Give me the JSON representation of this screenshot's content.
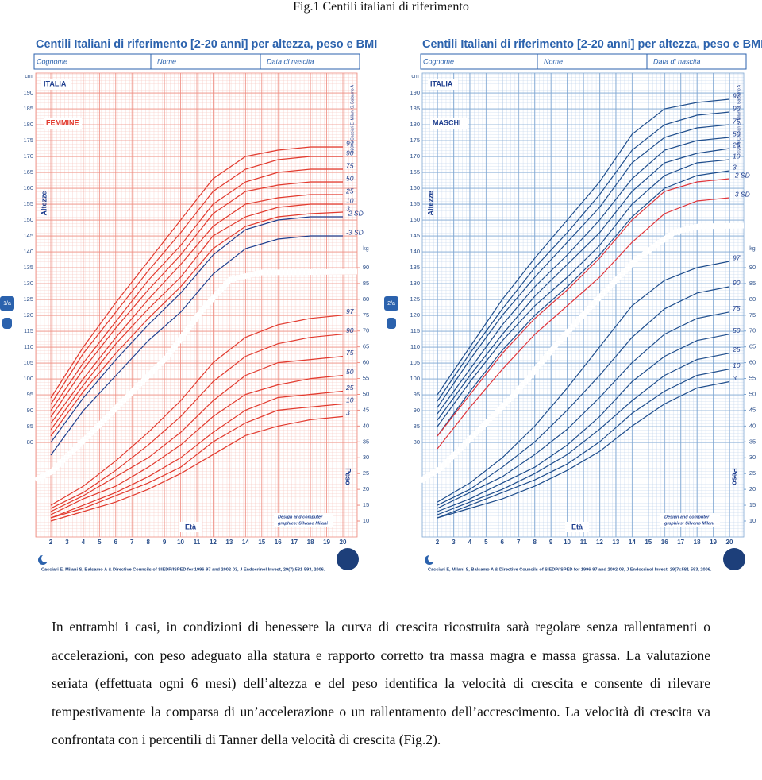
{
  "caption": "Fig.1 Centili italiani di riferimento",
  "charts": [
    {
      "title": "Centili Italiani di riferimento [2-20 anni] per altezza, peso e BMI",
      "fields": [
        "Cognome",
        "Nome",
        "Data di nascita"
      ],
      "country": "ITALIA",
      "sex": "FEMMINE",
      "tab": "1/a",
      "height_label": "Altezze",
      "weight_label": "Peso",
      "age_label": "Età",
      "height_unit": "cm",
      "weight_unit": "kg",
      "copyright": "©2006 Cacciari E, Milani S, Balsamo A",
      "design_credit": [
        "Design and computer",
        "graphics: Silvano Milani"
      ],
      "citation": "Cacciari E, Milani S, Balsamo A & Directive Councils of SIEDP/ISPED for 1996-97 and 2002-03, J Endocrinol Invest, 29(7):581-593, 2006.",
      "xlim": [
        2,
        20
      ],
      "xticks": [
        2,
        3,
        4,
        5,
        6,
        7,
        8,
        9,
        10,
        11,
        12,
        13,
        14,
        15,
        16,
        17,
        18,
        19,
        20
      ],
      "x": [
        2,
        4,
        6,
        8,
        10,
        12,
        14,
        16,
        18,
        20
      ],
      "height": {
        "ylim": [
          80,
          190
        ],
        "yticks": [
          80,
          85,
          90,
          95,
          100,
          105,
          110,
          115,
          120,
          125,
          130,
          135,
          140,
          145,
          150,
          155,
          160,
          165,
          170,
          175,
          180,
          185,
          190
        ],
        "series": [
          {
            "name": "97",
            "color": "#e23a2e",
            "values": [
              94,
              110,
              124,
              137,
              150,
              163,
              170,
              172,
              173,
              173
            ]
          },
          {
            "name": "90",
            "color": "#e23a2e",
            "values": [
              92,
              108,
              121,
              134,
              146,
              159,
              166,
              169,
              170,
              170
            ]
          },
          {
            "name": "75",
            "color": "#e23a2e",
            "values": [
              90,
              105,
              118,
              131,
              142,
              155,
              162,
              165,
              166,
              166
            ]
          },
          {
            "name": "50",
            "color": "#e23a2e",
            "values": [
              88,
              103,
              116,
              128,
              139,
              152,
              159,
              161,
              162,
              162
            ]
          },
          {
            "name": "25",
            "color": "#e23a2e",
            "values": [
              86,
              100,
              113,
              125,
              136,
              148,
              155,
              157,
              158,
              158
            ]
          },
          {
            "name": "10",
            "color": "#e23a2e",
            "values": [
              84,
              98,
              111,
              122,
              132,
              145,
              151,
              154,
              155,
              155
            ]
          },
          {
            "name": "3",
            "color": "#e23a2e",
            "values": [
              82,
              96,
              108,
              119,
              129,
              141,
              148,
              151,
              152,
              152.5
            ]
          },
          {
            "name": "-2 SD",
            "color": "#1f3f8f",
            "values": [
              80,
              94,
              106,
              117,
              127,
              139,
              147,
              150,
              151,
              151
            ]
          },
          {
            "name": "-3 SD",
            "color": "#1f3f8f",
            "values": [
              76,
              90,
              101,
              112,
              121,
              133,
              141,
              144,
              145,
              145
            ]
          }
        ]
      },
      "weight": {
        "ylim": [
          10,
          90
        ],
        "yticks": [
          10,
          15,
          20,
          25,
          30,
          35,
          40,
          45,
          50,
          55,
          60,
          65,
          70,
          75,
          80,
          85,
          90
        ],
        "series": [
          {
            "name": "97",
            "color": "#e23a2e",
            "values": [
              15,
              21,
              29,
              38,
              48,
              60,
              68,
              72,
              74,
              75
            ]
          },
          {
            "name": "90",
            "color": "#e23a2e",
            "values": [
              14,
              19,
              26,
              34,
              43,
              54,
              62,
              66,
              68,
              69
            ]
          },
          {
            "name": "75",
            "color": "#e23a2e",
            "values": [
              13,
              18,
              24,
              30,
              38,
              48,
              56,
              60,
              61,
              62
            ]
          },
          {
            "name": "50",
            "color": "#e23a2e",
            "values": [
              12,
              17,
              21,
              27,
              34,
              43,
              50,
              53,
              55,
              56
            ]
          },
          {
            "name": "25",
            "color": "#e23a2e",
            "values": [
              11,
              15,
              19,
              24,
              30,
              38,
              45,
              49,
              50,
              51
            ]
          },
          {
            "name": "10",
            "color": "#e23a2e",
            "values": [
              11,
              14,
              18,
              22,
              27,
              35,
              41,
              45,
              46,
              47
            ]
          },
          {
            "name": "3",
            "color": "#e23a2e",
            "values": [
              10,
              13,
              16,
              20,
              25,
              31,
              37,
              40,
              42,
              43
            ]
          }
        ]
      }
    },
    {
      "title": "Centili Italiani di riferimento [2-20 anni] per altezza, peso e BMI",
      "fields": [
        "Cognome",
        "Nome",
        "Data di nascita"
      ],
      "country": "ITALIA",
      "sex": "MASCHI",
      "tab": "2/a",
      "height_label": "Altezze",
      "weight_label": "Peso",
      "age_label": "Età",
      "height_unit": "cm",
      "weight_unit": "kg",
      "copyright": "©2006 Cacciari E, Milani S, Balsamo A",
      "design_credit": [
        "Design and computer",
        "graphics: Silvano Milani"
      ],
      "citation": "Cacciari E, Milani S, Balsamo A & Directive Councils of SIEDP/ISPED for 1996-97 and 2002-03, J Endocrinol Invest, 29(7):581-593, 2006.",
      "xlim": [
        2,
        20
      ],
      "xticks": [
        2,
        3,
        4,
        5,
        6,
        7,
        8,
        9,
        10,
        11,
        12,
        13,
        14,
        15,
        16,
        17,
        18,
        19,
        20
      ],
      "x": [
        2,
        4,
        6,
        8,
        10,
        12,
        14,
        16,
        18,
        20
      ],
      "height": {
        "ylim": [
          80,
          190
        ],
        "yticks": [
          80,
          85,
          90,
          95,
          100,
          105,
          110,
          115,
          120,
          125,
          130,
          135,
          140,
          145,
          150,
          155,
          160,
          165,
          170,
          175,
          180,
          185,
          190
        ],
        "series": [
          {
            "name": "97",
            "color": "#1e4d8c",
            "values": [
              95,
              110,
              125,
              138,
              150,
              162,
              177,
              185,
              187,
              188
            ]
          },
          {
            "name": "90",
            "color": "#1e4d8c",
            "values": [
              93,
              108,
              122,
              135,
              146,
              158,
              172,
              180,
              183,
              184
            ]
          },
          {
            "name": "75",
            "color": "#1e4d8c",
            "values": [
              91,
              106,
              120,
              132,
              143,
              154,
              168,
              176,
              179,
              180
            ]
          },
          {
            "name": "50",
            "color": "#1e4d8c",
            "values": [
              89,
              103,
              117,
              129,
              139,
              150,
              163,
              172,
              175,
              176
            ]
          },
          {
            "name": "25",
            "color": "#1e4d8c",
            "values": [
              87,
              101,
              114,
              126,
              136,
              146,
              159,
              168,
              171,
              172.5
            ]
          },
          {
            "name": "10",
            "color": "#1e4d8c",
            "values": [
              85,
              99,
              112,
              123,
              132,
              142,
              155,
              164,
              168,
              169
            ]
          },
          {
            "name": "3",
            "color": "#1e4d8c",
            "values": [
              82,
              96,
              109,
              120,
              129,
              139,
              151,
              160,
              164,
              165.5
            ]
          },
          {
            "name": "-2 SD",
            "color": "#e0343a",
            "values": [
              82,
              95,
              108,
              119,
              128,
              138,
              150,
              159,
              162,
              163
            ]
          },
          {
            "name": "-3 SD",
            "color": "#e0343a",
            "values": [
              78,
              91,
              103,
              114,
              123,
              132,
              143,
              152,
              156,
              157
            ]
          }
        ]
      },
      "weight": {
        "ylim": [
          10,
          90
        ],
        "yticks": [
          10,
          15,
          20,
          25,
          30,
          35,
          40,
          45,
          50,
          55,
          60,
          65,
          70,
          75,
          80,
          85,
          90
        ],
        "series": [
          {
            "name": "97",
            "color": "#1e4d8c",
            "values": [
              16,
              22,
              30,
              40,
              52,
              65,
              78,
              86,
              90,
              92
            ]
          },
          {
            "name": "90",
            "color": "#1e4d8c",
            "values": [
              15,
              20,
              27,
              35,
              45,
              56,
              68,
              77,
              82,
              84
            ]
          },
          {
            "name": "75",
            "color": "#1e4d8c",
            "values": [
              14,
              19,
              24,
              31,
              39,
              49,
              60,
              69,
              74,
              76
            ]
          },
          {
            "name": "50",
            "color": "#1e4d8c",
            "values": [
              13,
              17,
              22,
              27,
              34,
              43,
              54,
              62,
              67,
              69
            ]
          },
          {
            "name": "25",
            "color": "#1e4d8c",
            "values": [
              12,
              16,
              20,
              25,
              31,
              39,
              48,
              56,
              61,
              63
            ]
          },
          {
            "name": "10",
            "color": "#1e4d8c",
            "values": [
              11,
              15,
              19,
              23,
              28,
              35,
              44,
              51,
              56,
              58
            ]
          },
          {
            "name": "3",
            "color": "#1e4d8c",
            "values": [
              11,
              14,
              17,
              21,
              26,
              32,
              40,
              47,
              52,
              54
            ]
          }
        ]
      }
    }
  ],
  "paragraph": "In entrambi i casi, in condizioni di benessere la curva di crescita ricostruita sarà regolare senza rallentamenti o accelerazioni, con peso adeguato alla statura e rapporto corretto tra massa magra e massa grassa. La valutazione seriata (effettuata ogni 6 mesi) dell’altezza e del peso identifica la velocità di crescita e consente di rilevare tempestivamente la comparsa di un’accelerazione o un rallentamento dell’accrescimento. La velocità di crescita va confrontata con i percentili di Tanner della velocità di crescita (Fig.2)."
}
